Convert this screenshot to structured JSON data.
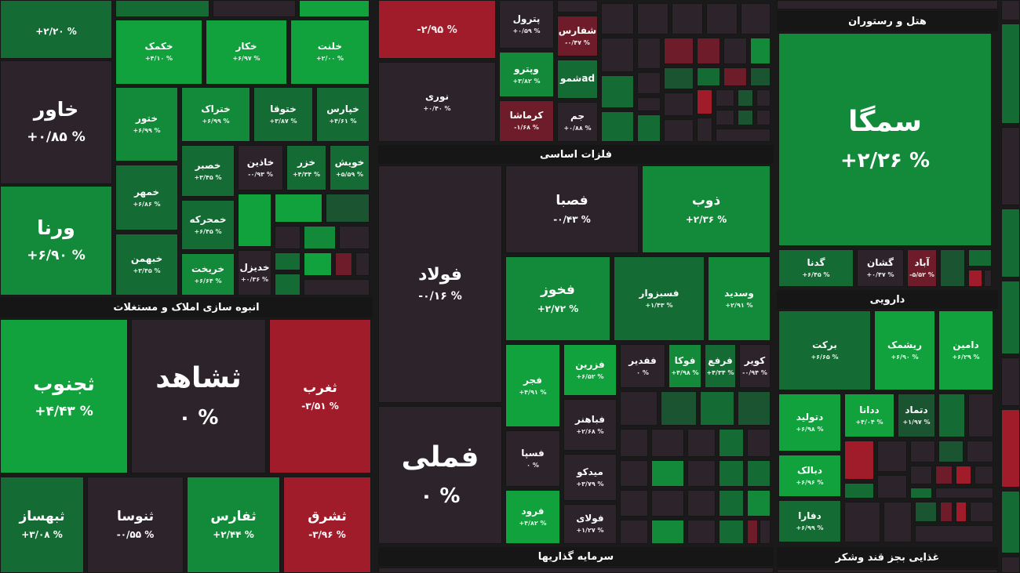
{
  "colors": {
    "strong_green": "#11a23e",
    "green": "#138a3a",
    "dark_green": "#156b34",
    "deep_green": "#1b5430",
    "neutral": "#2c232b",
    "red": "#a01c2a",
    "dark_red": "#6e1c29",
    "gap": "#161616"
  },
  "sectors": {
    "real_estate": "انبوه سازی املاک و مستغلات",
    "basic_metals": "فلزات اساسی",
    "investment": "سرمایه گذاریها",
    "hotel": "هتل و رستوران",
    "pharma": "دارویی",
    "food": "غذایی بجز قند وشکر"
  },
  "tiles": {
    "a1": {
      "name": "",
      "pct": "+۲/۲۰ %"
    },
    "a2": {
      "name": "خاور",
      "pct": "+۰/۸۵ %"
    },
    "a3": {
      "name": "ورنا",
      "pct": "+۶/۹۰ %"
    },
    "b1": {
      "name": "خکمک",
      "pct": "+۴/۱۰ %"
    },
    "b2": {
      "name": "خکار",
      "pct": "+۶/۹۷ %"
    },
    "b3": {
      "name": "خلنت",
      "pct": "+۲/۰۰ %"
    },
    "b4": {
      "name": "ختور",
      "pct": "+۶/۹۹ %"
    },
    "b5": {
      "name": "ختراک",
      "pct": "+۶/۹۹ %"
    },
    "b6": {
      "name": "ختوقا",
      "pct": "+۳/۸۷ %"
    },
    "b7": {
      "name": "خپارس",
      "pct": "+۴/۶۱ %"
    },
    "b8": {
      "name": "خصبر",
      "pct": "+۳/۴۵ %"
    },
    "b9": {
      "name": "خاذین",
      "pct": "-۰/۹۳ %"
    },
    "b10": {
      "name": "خزر",
      "pct": "+۴/۳۴ %"
    },
    "b11": {
      "name": "خویش",
      "pct": "+۵/۵۹ %"
    },
    "b12": {
      "name": "خمهر",
      "pct": "+۶/۸۶ %"
    },
    "b13": {
      "name": "خمحرکه",
      "pct": "+۶/۴۵ %"
    },
    "b14": {
      "name": "خبهمن",
      "pct": "+۳/۴۵ %"
    },
    "b15": {
      "name": "خریخت",
      "pct": "+۶/۶۴ %"
    },
    "b16": {
      "name": "خدیزل",
      "pct": "+۰/۳۶ %"
    },
    "c1": {
      "name": "",
      "pct": "-۲/۹۵ %"
    },
    "c2": {
      "name": "نوری",
      "pct": "+۰/۴۰ %"
    },
    "c3": {
      "name": "پترول",
      "pct": "+۰/۵۹ %"
    },
    "c4": {
      "name": "شفارس",
      "pct": "-۰/۴۷ %"
    },
    "c5": {
      "name": "وپترو",
      "pct": "+۳/۸۲ %"
    },
    "c6": {
      "name": "شموad",
      "pct": ""
    },
    "c7": {
      "name": "کرماشا",
      "pct": "-۱/۶۸ %"
    },
    "c8": {
      "name": "جم",
      "pct": "+۰/۸۸ %"
    },
    "e1": {
      "name": "فولاد",
      "pct": "-۰/۱۶ %"
    },
    "e2": {
      "name": "فملی",
      "pct": "۰ %"
    },
    "e3": {
      "name": "فصبا",
      "pct": "-۰/۴۳ %"
    },
    "e4": {
      "name": "ذوب",
      "pct": "+۲/۳۶ %"
    },
    "e5": {
      "name": "فخوز",
      "pct": "+۲/۷۲ %"
    },
    "e6": {
      "name": "فسبزوار",
      "pct": "+۱/۴۳ %"
    },
    "e7": {
      "name": "وسدید",
      "pct": "+۲/۹۱ %"
    },
    "e8": {
      "name": "فجر",
      "pct": "+۴/۹۱ %"
    },
    "e9": {
      "name": "فزرین",
      "pct": "+۶/۵۲ %"
    },
    "e10": {
      "name": "ففدیر",
      "pct": "۰ %"
    },
    "e11": {
      "name": "فوکا",
      "pct": "+۴/۹۸ %"
    },
    "e12": {
      "name": "فرفع",
      "pct": "+۴/۳۴ %"
    },
    "e13": {
      "name": "کویر",
      "pct": "-۰/۹۴ %"
    },
    "e14": {
      "name": "فباهنر",
      "pct": "+۲/۶۸ %"
    },
    "e15": {
      "name": "فسپا",
      "pct": "۰ %"
    },
    "e16": {
      "name": "میدکو",
      "pct": "+۳/۷۹ %"
    },
    "e17": {
      "name": "فرود",
      "pct": "+۴/۸۲ %"
    },
    "e18": {
      "name": "فولای",
      "pct": "+۱/۲۷ %"
    },
    "f1": {
      "name": "ثجنوب",
      "pct": "+۴/۴۳ %"
    },
    "f2": {
      "name": "ثشاهد",
      "pct": "۰ %"
    },
    "f3": {
      "name": "ثغرب",
      "pct": "-۳/۵۱ %"
    },
    "f4": {
      "name": "ثبهساز",
      "pct": "+۳/۰۸ %"
    },
    "f5": {
      "name": "ثنوسا",
      "pct": "-۰/۵۵ %"
    },
    "f6": {
      "name": "ثفارس",
      "pct": "+۲/۴۴ %"
    },
    "f7": {
      "name": "ثشرق",
      "pct": "-۳/۹۶ %"
    },
    "h1": {
      "name": "سمگا",
      "pct": "+۲/۲۶ %"
    },
    "h2": {
      "name": "گدنا",
      "pct": "+۶/۴۵ %"
    },
    "h3": {
      "name": "گشان",
      "pct": "+۰/۴۷ %"
    },
    "h4": {
      "name": "آباد",
      "pct": "-۵/۵۲ %"
    },
    "p1": {
      "name": "برکت",
      "pct": "+۶/۶۵ %"
    },
    "p2": {
      "name": "ریشمک",
      "pct": "+۶/۹۰ %"
    },
    "p3": {
      "name": "دامین",
      "pct": "+۶/۲۹ %"
    },
    "p4": {
      "name": "دتولید",
      "pct": "+۶/۹۸ %"
    },
    "p5": {
      "name": "ددانا",
      "pct": "+۴/۰۴ %"
    },
    "p6": {
      "name": "دتماد",
      "pct": "+۱/۹۷ %"
    },
    "p7": {
      "name": "دبالک",
      "pct": "+۶/۹۶ %"
    },
    "p8": {
      "name": "دفارا",
      "pct": "+۶/۹۹ %"
    }
  }
}
